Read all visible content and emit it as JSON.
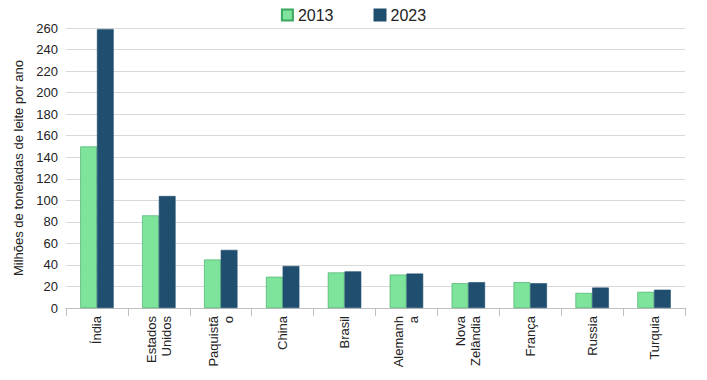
{
  "chart_data": {
    "type": "bar",
    "y_label": "Milhões de toneladas de leite por ano",
    "categories": [
      "Índia",
      "Estados\nUnidos",
      "Paquistã\no",
      "China",
      "Brasil",
      "Alemanh\na",
      "Nova\nZelândia",
      "França",
      "Russia",
      "Turquia"
    ],
    "series": [
      {
        "name": "2013",
        "color": "#7ee39b",
        "values": [
          150,
          86,
          45,
          29,
          33,
          31,
          23,
          24,
          14,
          15
        ]
      },
      {
        "name": "2023",
        "color": "#1f4e6e",
        "values": [
          259,
          104,
          54,
          39,
          34,
          32,
          24,
          23,
          19,
          17
        ]
      }
    ],
    "ylim": [
      0,
      260
    ],
    "yticks": [
      0,
      20,
      40,
      60,
      80,
      100,
      120,
      140,
      160,
      180,
      200,
      220,
      240,
      260
    ],
    "grid": true,
    "legend": "top"
  }
}
